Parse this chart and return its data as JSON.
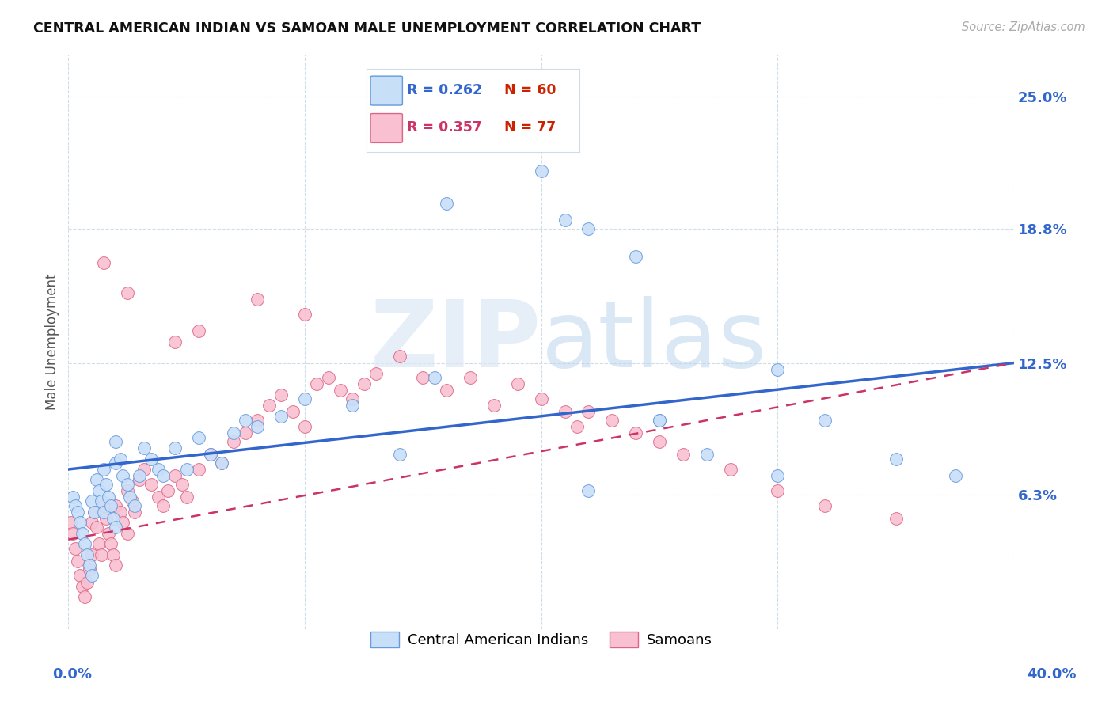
{
  "title": "CENTRAL AMERICAN INDIAN VS SAMOAN MALE UNEMPLOYMENT CORRELATION CHART",
  "source": "Source: ZipAtlas.com",
  "ylabel": "Male Unemployment",
  "ytick_labels": [
    "6.3%",
    "12.5%",
    "18.8%",
    "25.0%"
  ],
  "ytick_values": [
    0.063,
    0.125,
    0.188,
    0.25
  ],
  "xmin": 0.0,
  "xmax": 0.4,
  "ymin": 0.0,
  "ymax": 0.27,
  "legend_R_blue": "R = 0.262",
  "legend_N_blue": "N = 60",
  "legend_R_pink": "R = 0.357",
  "legend_N_pink": "N = 77",
  "color_blue_fill": "#c8dff8",
  "color_blue_edge": "#6699dd",
  "color_pink_fill": "#f8c0d0",
  "color_pink_edge": "#dd6688",
  "color_line_blue": "#3366cc",
  "color_line_pink": "#cc3366",
  "watermark_zip": "ZIP",
  "watermark_atlas": "atlas",
  "grid_color": "#d0dde8",
  "blue_points_x": [
    0.002,
    0.003,
    0.004,
    0.005,
    0.006,
    0.007,
    0.008,
    0.009,
    0.01,
    0.01,
    0.011,
    0.012,
    0.013,
    0.014,
    0.015,
    0.015,
    0.016,
    0.017,
    0.018,
    0.019,
    0.02,
    0.02,
    0.02,
    0.022,
    0.023,
    0.025,
    0.026,
    0.028,
    0.03,
    0.032,
    0.035,
    0.038,
    0.04,
    0.045,
    0.05,
    0.055,
    0.06,
    0.065,
    0.07,
    0.075,
    0.08,
    0.09,
    0.1,
    0.12,
    0.14,
    0.155,
    0.16,
    0.2,
    0.21,
    0.22,
    0.24,
    0.25,
    0.27,
    0.3,
    0.32,
    0.35,
    0.375,
    0.25,
    0.22,
    0.3
  ],
  "blue_points_y": [
    0.062,
    0.058,
    0.055,
    0.05,
    0.045,
    0.04,
    0.035,
    0.03,
    0.025,
    0.06,
    0.055,
    0.07,
    0.065,
    0.06,
    0.055,
    0.075,
    0.068,
    0.062,
    0.058,
    0.052,
    0.048,
    0.078,
    0.088,
    0.08,
    0.072,
    0.068,
    0.062,
    0.058,
    0.072,
    0.085,
    0.08,
    0.075,
    0.072,
    0.085,
    0.075,
    0.09,
    0.082,
    0.078,
    0.092,
    0.098,
    0.095,
    0.1,
    0.108,
    0.105,
    0.082,
    0.118,
    0.2,
    0.215,
    0.192,
    0.188,
    0.175,
    0.098,
    0.082,
    0.122,
    0.098,
    0.08,
    0.072,
    0.098,
    0.065,
    0.072
  ],
  "pink_points_x": [
    0.001,
    0.002,
    0.003,
    0.004,
    0.005,
    0.006,
    0.007,
    0.008,
    0.009,
    0.01,
    0.01,
    0.011,
    0.012,
    0.013,
    0.014,
    0.015,
    0.016,
    0.017,
    0.018,
    0.019,
    0.02,
    0.02,
    0.022,
    0.023,
    0.025,
    0.025,
    0.027,
    0.028,
    0.03,
    0.032,
    0.035,
    0.038,
    0.04,
    0.042,
    0.045,
    0.048,
    0.05,
    0.055,
    0.06,
    0.065,
    0.07,
    0.075,
    0.08,
    0.085,
    0.09,
    0.095,
    0.1,
    0.105,
    0.11,
    0.115,
    0.12,
    0.125,
    0.13,
    0.14,
    0.15,
    0.16,
    0.17,
    0.18,
    0.19,
    0.2,
    0.21,
    0.215,
    0.22,
    0.23,
    0.24,
    0.25,
    0.26,
    0.28,
    0.3,
    0.32,
    0.35,
    0.025,
    0.015,
    0.045,
    0.055,
    0.08,
    0.1
  ],
  "pink_points_y": [
    0.05,
    0.045,
    0.038,
    0.032,
    0.025,
    0.02,
    0.015,
    0.022,
    0.028,
    0.035,
    0.05,
    0.055,
    0.048,
    0.04,
    0.035,
    0.058,
    0.052,
    0.045,
    0.04,
    0.035,
    0.03,
    0.058,
    0.055,
    0.05,
    0.045,
    0.065,
    0.06,
    0.055,
    0.07,
    0.075,
    0.068,
    0.062,
    0.058,
    0.065,
    0.072,
    0.068,
    0.062,
    0.075,
    0.082,
    0.078,
    0.088,
    0.092,
    0.098,
    0.105,
    0.11,
    0.102,
    0.095,
    0.115,
    0.118,
    0.112,
    0.108,
    0.115,
    0.12,
    0.128,
    0.118,
    0.112,
    0.118,
    0.105,
    0.115,
    0.108,
    0.102,
    0.095,
    0.102,
    0.098,
    0.092,
    0.088,
    0.082,
    0.075,
    0.065,
    0.058,
    0.052,
    0.158,
    0.172,
    0.135,
    0.14,
    0.155,
    0.148
  ]
}
